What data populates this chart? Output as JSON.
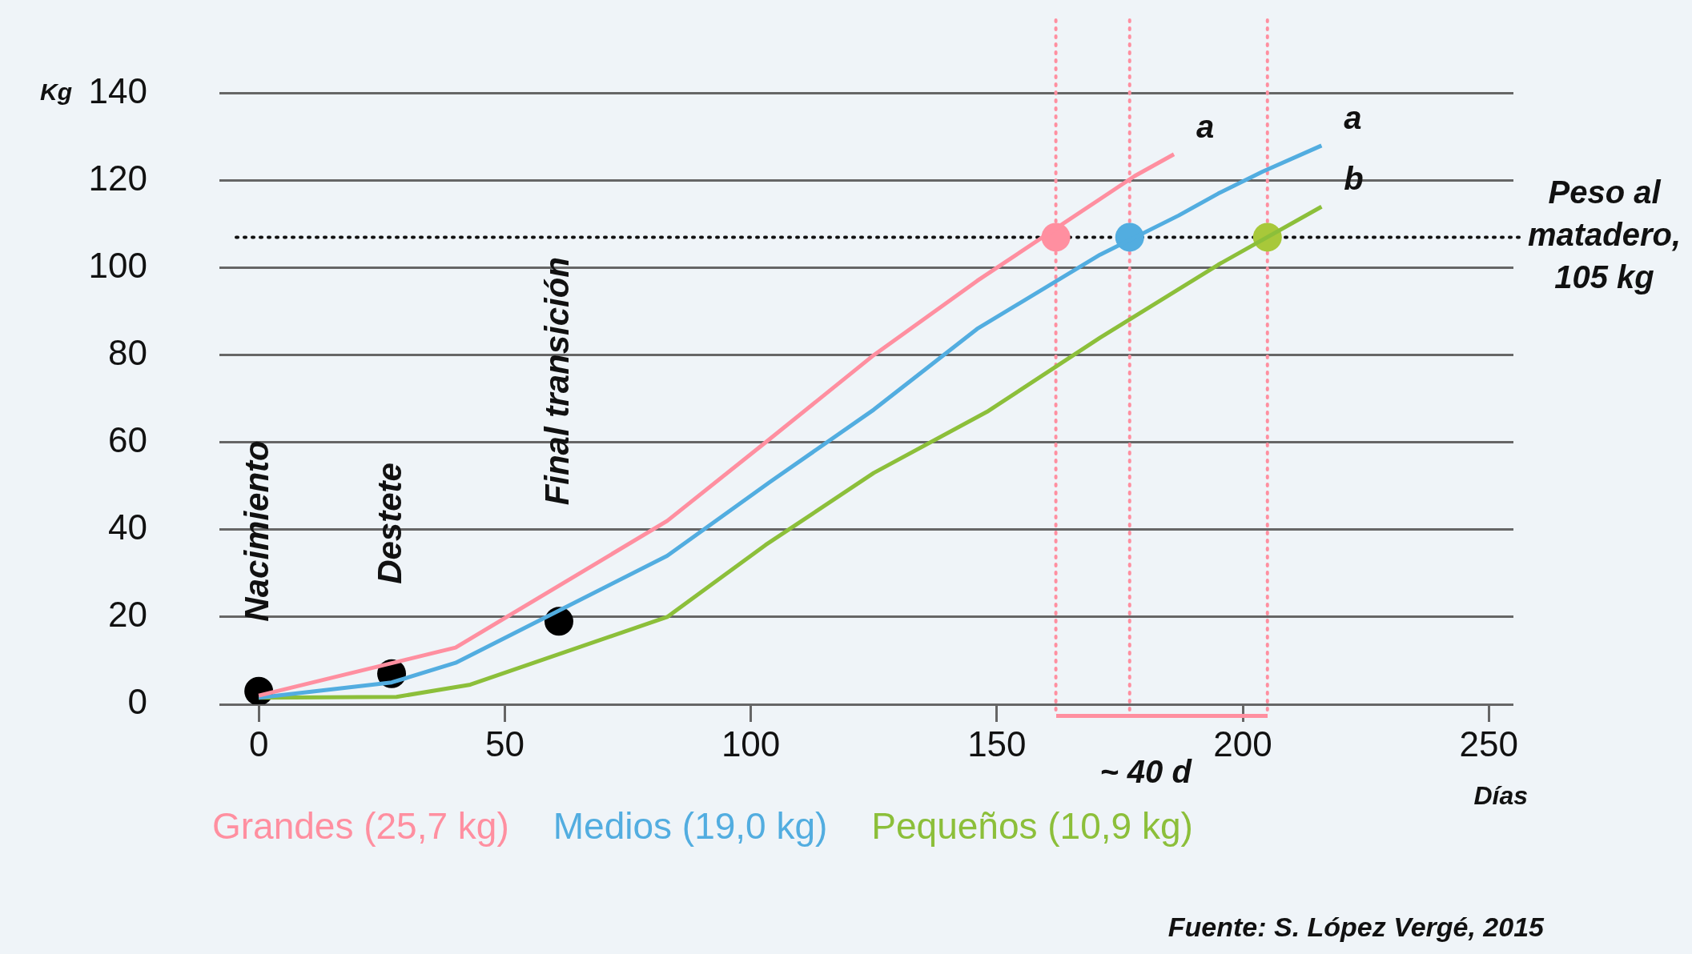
{
  "chart_data": {
    "type": "line",
    "xlabel": "Días",
    "ylabel": "Kg",
    "xlim": [
      -8,
      255
    ],
    "xticks": [
      0,
      50,
      100,
      150,
      200,
      250
    ],
    "ylim": [
      0,
      140
    ],
    "yticks": [
      0,
      20,
      40,
      60,
      80,
      100,
      120,
      140
    ],
    "grid": "y",
    "legend": "bottom",
    "marker": "none",
    "line_style": "solid",
    "series": [
      {
        "name": "Grandes (25,7 kg)",
        "color": "#ff8fa0",
        "x": [
          0,
          40,
          83,
          103,
          125,
          146,
          170,
          178,
          186
        ],
        "values": [
          2,
          13,
          42,
          60,
          80,
          97,
          115,
          121,
          126
        ]
      },
      {
        "name": "Medios (19,0 kg)",
        "color": "#52ade0",
        "x": [
          0,
          27,
          40,
          83,
          104,
          125,
          146,
          171,
          187,
          195,
          204,
          216
        ],
        "values": [
          1.5,
          5,
          9.5,
          34,
          51,
          67.5,
          86,
          103,
          112,
          117,
          122,
          128
        ]
      },
      {
        "name": "Pequeños (10,9 kg)",
        "color": "#8cbf3a",
        "x": [
          0,
          28,
          43,
          83,
          103,
          125,
          148,
          171,
          195,
          216
        ],
        "values": [
          1.5,
          1.7,
          4.5,
          20,
          36.5,
          53,
          67,
          84,
          100.7,
          114
        ]
      },
      {
        "type": "scatter",
        "marker": "circle",
        "color": "#000000",
        "x": [
          0,
          27,
          61
        ],
        "values": [
          3,
          7,
          19
        ]
      },
      {
        "type": "scatter",
        "marker": "circle",
        "color": "#ff8fa0",
        "x": [
          162
        ],
        "values": [
          107
        ]
      },
      {
        "type": "scatter",
        "marker": "circle",
        "color": "#52ade0",
        "x": [
          177
        ],
        "values": [
          107
        ]
      },
      {
        "type": "scatter",
        "marker": "circle",
        "color": "#a8c83a",
        "x": [
          205
        ],
        "values": [
          107
        ]
      }
    ],
    "ref_lines": [
      {
        "axis": "y",
        "value": 107,
        "label": "Peso al matadero, 105 kg",
        "color": "#111111",
        "line_style": "dotted"
      },
      {
        "axis": "x",
        "value": 162,
        "color": "#ff8fa0",
        "line_style": "dotted"
      },
      {
        "axis": "x",
        "value": 177,
        "color": "#ff8fa0",
        "line_style": "dotted"
      },
      {
        "axis": "x",
        "value": 205,
        "color": "#ff8fa0",
        "line_style": "dotted"
      }
    ],
    "annotations": [
      "Nacimiento",
      "Destete",
      "Final transición",
      "~ 40 d",
      "a",
      "a",
      "b",
      "Fuente: S. López Vergé, 2015"
    ]
  }
}
